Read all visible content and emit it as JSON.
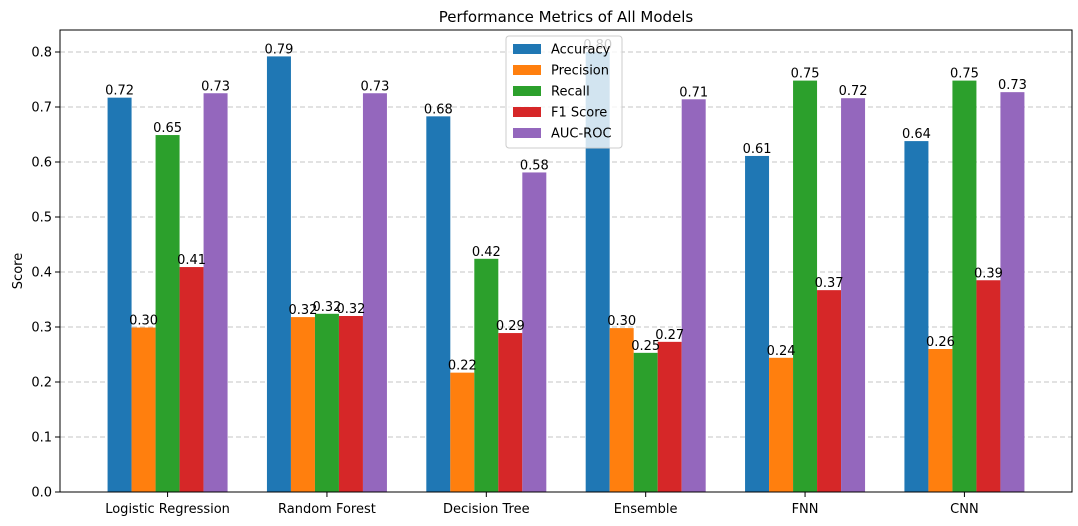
{
  "chart_data": {
    "type": "bar",
    "title": "Performance Metrics of All Models",
    "xlabel": "",
    "ylabel": "Score",
    "ylim": [
      0,
      0.84
    ],
    "yticks": [
      "0.0",
      "0.1",
      "0.2",
      "0.3",
      "0.4",
      "0.5",
      "0.6",
      "0.7",
      "0.8"
    ],
    "grid": "y, dashed",
    "legend_position": "top-center",
    "categories": [
      "Logistic Regression",
      "Random Forest",
      "Decision Tree",
      "Ensemble",
      "FNN",
      "CNN"
    ],
    "series": [
      {
        "name": "Accuracy",
        "color": "#1f77b4",
        "values": [
          0.717,
          0.792,
          0.683,
          0.8,
          0.611,
          0.638
        ],
        "labels": [
          "0.72",
          "0.79",
          "0.68",
          "0.80",
          "0.61",
          "0.64"
        ]
      },
      {
        "name": "Precision",
        "color": "#ff7f0e",
        "values": [
          0.299,
          0.318,
          0.217,
          0.298,
          0.244,
          0.26
        ],
        "labels": [
          "0.30",
          "0.32",
          "0.22",
          "0.30",
          "0.24",
          "0.26"
        ]
      },
      {
        "name": "Recall",
        "color": "#2ca02c",
        "values": [
          0.649,
          0.324,
          0.424,
          0.253,
          0.748,
          0.748
        ],
        "labels": [
          "0.65",
          "0.32",
          "0.42",
          "0.25",
          "0.75",
          "0.75"
        ]
      },
      {
        "name": "F1 Score",
        "color": "#d62728",
        "values": [
          0.409,
          0.32,
          0.289,
          0.273,
          0.367,
          0.385
        ],
        "labels": [
          "0.41",
          "0.32",
          "0.29",
          "0.27",
          "0.37",
          "0.39"
        ]
      },
      {
        "name": "AUC-ROC",
        "color": "#9467bd",
        "values": [
          0.725,
          0.725,
          0.581,
          0.714,
          0.716,
          0.727
        ],
        "labels": [
          "0.73",
          "0.73",
          "0.58",
          "0.71",
          "0.72",
          "0.73"
        ]
      }
    ]
  }
}
